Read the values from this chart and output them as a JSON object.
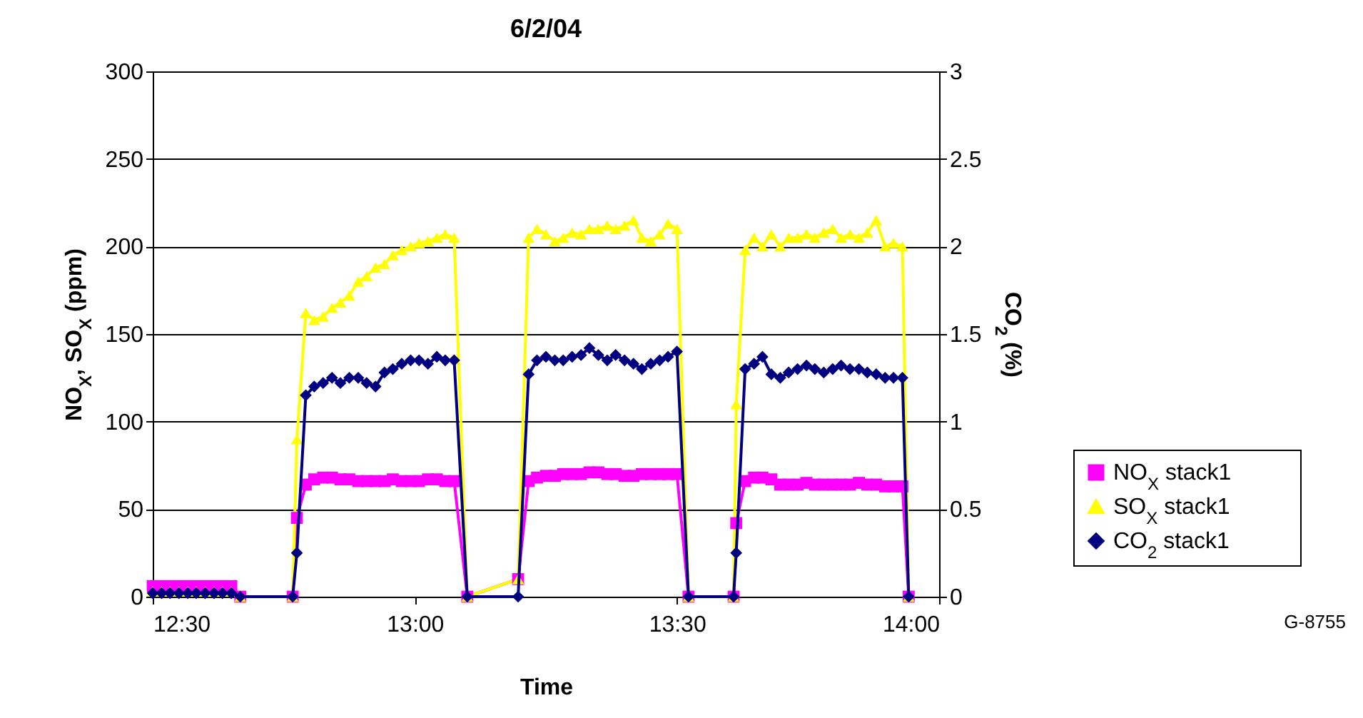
{
  "chart_data": {
    "type": "line",
    "title": "6/2/04",
    "xlabel": "Time",
    "ylabel": "NO$_{X}$, SO$_{X}$ (ppm)",
    "y2label": "CO$_{2}$ (%)",
    "x": [
      12.5,
      12.517,
      12.533,
      12.55,
      12.567,
      12.583,
      12.6,
      12.617,
      12.633,
      12.65,
      12.667,
      12.767,
      12.775,
      12.792,
      12.808,
      12.825,
      12.842,
      12.858,
      12.875,
      12.892,
      12.908,
      12.925,
      12.942,
      12.958,
      12.975,
      12.992,
      13.008,
      13.025,
      13.042,
      13.058,
      13.075,
      13.1,
      13.197,
      13.217,
      13.233,
      13.25,
      13.267,
      13.283,
      13.3,
      13.317,
      13.333,
      13.35,
      13.367,
      13.383,
      13.4,
      13.417,
      13.433,
      13.45,
      13.467,
      13.483,
      13.5,
      13.522,
      13.608,
      13.613,
      13.63,
      13.647,
      13.663,
      13.68,
      13.697,
      13.713,
      13.73,
      13.747,
      13.763,
      13.78,
      13.797,
      13.813,
      13.83,
      13.847,
      13.863,
      13.88,
      13.897,
      13.913,
      13.93,
      13.942
    ],
    "series": [
      {
        "name": "NO$_{X}$ stack1",
        "color": "#ff00ff",
        "marker": "square",
        "values": [
          6,
          6,
          6,
          6,
          6,
          6,
          6,
          6,
          6,
          6,
          0,
          0,
          45,
          64,
          67,
          68,
          68,
          67,
          67,
          66,
          66,
          66,
          66,
          67,
          66,
          66,
          66,
          67,
          67,
          66,
          66,
          0,
          10,
          66,
          68,
          69,
          69,
          70,
          70,
          70,
          71,
          71,
          70,
          70,
          69,
          69,
          70,
          70,
          70,
          70,
          70,
          0,
          0,
          42,
          66,
          68,
          68,
          67,
          64,
          64,
          64,
          65,
          64,
          64,
          64,
          64,
          64,
          65,
          64,
          64,
          63,
          63,
          63,
          0
        ]
      },
      {
        "name": "SO$_{X}$ stack1",
        "color": "#ffff00",
        "marker": "triangle",
        "values": [
          3,
          3,
          3,
          3,
          3,
          3,
          3,
          3,
          3,
          3,
          0,
          0,
          90,
          162,
          158,
          160,
          165,
          168,
          172,
          180,
          183,
          188,
          190,
          195,
          198,
          200,
          202,
          203,
          205,
          207,
          205,
          0,
          10,
          205,
          210,
          207,
          203,
          205,
          208,
          207,
          210,
          210,
          212,
          210,
          212,
          215,
          205,
          203,
          207,
          213,
          210,
          0,
          0,
          110,
          198,
          205,
          200,
          207,
          200,
          205,
          205,
          207,
          205,
          208,
          210,
          205,
          207,
          205,
          208,
          215,
          200,
          202,
          200,
          0
        ]
      },
      {
        "name": "CO$_{2}$ stack1",
        "color": "#000080",
        "marker": "diamond",
        "axis": "y2",
        "values": [
          0.02,
          0.02,
          0.02,
          0.02,
          0.02,
          0.02,
          0.02,
          0.02,
          0.02,
          0.02,
          0,
          0,
          0.25,
          1.15,
          1.2,
          1.22,
          1.25,
          1.22,
          1.25,
          1.25,
          1.22,
          1.2,
          1.28,
          1.3,
          1.33,
          1.35,
          1.35,
          1.33,
          1.37,
          1.35,
          1.35,
          0,
          0,
          1.27,
          1.35,
          1.37,
          1.35,
          1.35,
          1.37,
          1.38,
          1.42,
          1.38,
          1.35,
          1.38,
          1.35,
          1.33,
          1.3,
          1.33,
          1.35,
          1.37,
          1.4,
          0,
          0,
          0.25,
          1.3,
          1.33,
          1.37,
          1.27,
          1.25,
          1.28,
          1.3,
          1.32,
          1.3,
          1.28,
          1.3,
          1.32,
          1.3,
          1.3,
          1.28,
          1.27,
          1.25,
          1.25,
          1.25,
          0
        ]
      }
    ],
    "xlim": [
      12.5,
      14
    ],
    "xticks": [
      {
        "value": 12.5,
        "label": "12:30"
      },
      {
        "value": 13,
        "label": "13:00"
      },
      {
        "value": 13.5,
        "label": "13:30"
      },
      {
        "value": 14,
        "label": "14:00"
      }
    ],
    "ylim": [
      0,
      300
    ],
    "yticks": [
      0,
      50,
      100,
      150,
      200,
      250,
      300
    ],
    "y2lim": [
      0,
      3
    ],
    "y2ticks": [
      0,
      0.5,
      1,
      1.5,
      2,
      2.5,
      3
    ],
    "grid": "y",
    "legend": "right",
    "annotations": [
      "G-8755"
    ]
  }
}
